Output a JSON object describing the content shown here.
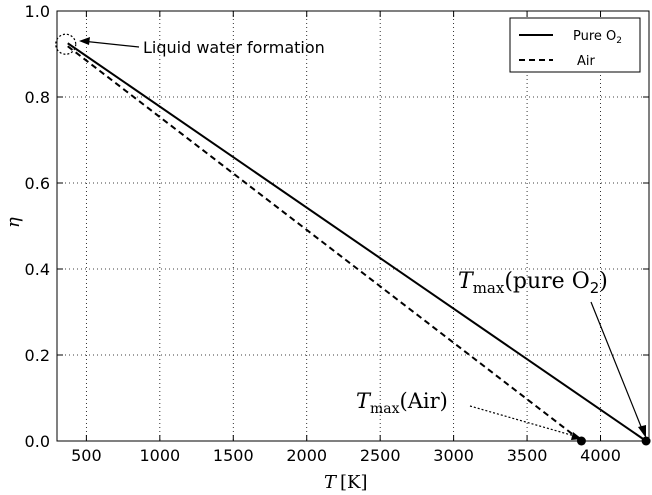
{
  "chart_data": {
    "type": "line",
    "xlabel": "T [K]",
    "ylabel": "η",
    "xlim": [
      300,
      4330
    ],
    "ylim": [
      0.0,
      1.0
    ],
    "xticks": [
      500,
      1000,
      1500,
      2000,
      2500,
      3000,
      3500,
      4000
    ],
    "yticks": [
      0.0,
      0.2,
      0.4,
      0.6,
      0.8,
      1.0
    ],
    "x_tick_labels": [
      "500",
      "1000",
      "1500",
      "2000",
      "2500",
      "3000",
      "3500",
      "4000"
    ],
    "y_tick_labels": [
      "0.0",
      "0.2",
      "0.4",
      "0.6",
      "0.8",
      "1.0"
    ],
    "grid": true,
    "legend_position": "top-right",
    "series": [
      {
        "name": "Pure O2",
        "style": "solid",
        "color": "#000000",
        "x": [
          373,
          4310
        ],
        "y": [
          0.925,
          0.0
        ]
      },
      {
        "name": "Air",
        "style": "dashed",
        "color": "#000000",
        "x": [
          373,
          3870
        ],
        "y": [
          0.918,
          0.0
        ]
      }
    ],
    "annotations": [
      {
        "text": "Liquid water formation",
        "x": 373,
        "y": 0.925,
        "marker": "dotted-circle"
      },
      {
        "text": "T_max(pure O2)",
        "x": 4310,
        "y": 0.0,
        "marker": "filled-dot"
      },
      {
        "text": "T_max(Air)",
        "x": 3870,
        "y": 0.0,
        "marker": "filled-dot"
      }
    ]
  },
  "legend": {
    "pure": {
      "main": "Pure O",
      "sub": "2"
    },
    "air": "Air"
  },
  "labels": {
    "xlabel_main": "T",
    "xlabel_unit": "[K]",
    "ylabel": "η",
    "liquid_water": "Liquid water formation",
    "tmax_T": "T",
    "tmax_sub": "max",
    "tmax_pure": "(pure O",
    "tmax_pure_sub": "2",
    "tmax_pure_close": ")",
    "tmax_air": "(Air)"
  }
}
